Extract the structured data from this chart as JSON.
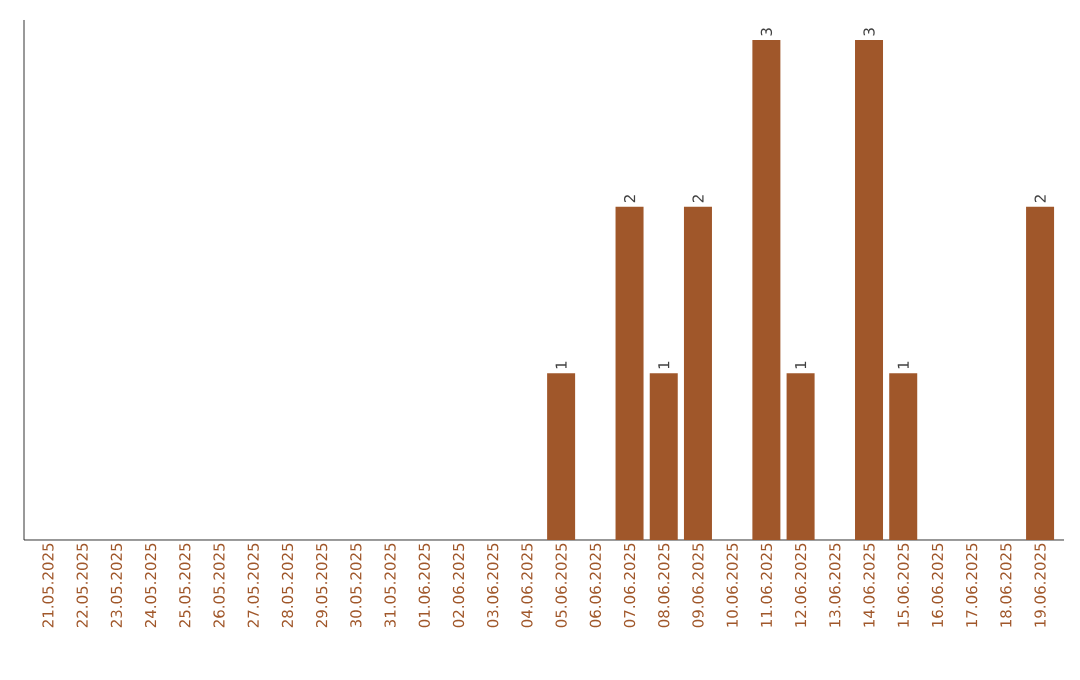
{
  "chart_data": {
    "type": "bar",
    "categories": [
      "21.05.2025",
      "22.05.2025",
      "23.05.2025",
      "24.05.2025",
      "25.05.2025",
      "26.05.2025",
      "27.05.2025",
      "28.05.2025",
      "29.05.2025",
      "30.05.2025",
      "31.05.2025",
      "01.06.2025",
      "02.06.2025",
      "03.06.2025",
      "04.06.2025",
      "05.06.2025",
      "06.06.2025",
      "07.06.2025",
      "08.06.2025",
      "09.06.2025",
      "10.06.2025",
      "11.06.2025",
      "12.06.2025",
      "13.06.2025",
      "14.06.2025",
      "15.06.2025",
      "16.06.2025",
      "17.06.2025",
      "18.06.2025",
      "19.06.2025"
    ],
    "values": [
      null,
      null,
      null,
      null,
      null,
      null,
      null,
      null,
      null,
      null,
      null,
      null,
      null,
      null,
      null,
      1,
      null,
      2,
      1,
      2,
      null,
      3,
      1,
      null,
      3,
      1,
      null,
      null,
      null,
      2
    ],
    "value_labels": [
      null,
      null,
      null,
      null,
      null,
      null,
      null,
      null,
      null,
      null,
      null,
      null,
      null,
      null,
      null,
      "1",
      null,
      "2",
      "1",
      "2",
      null,
      "3",
      "1",
      null,
      "3",
      "1",
      null,
      null,
      null,
      "2"
    ],
    "color": "#a0572a"
  }
}
